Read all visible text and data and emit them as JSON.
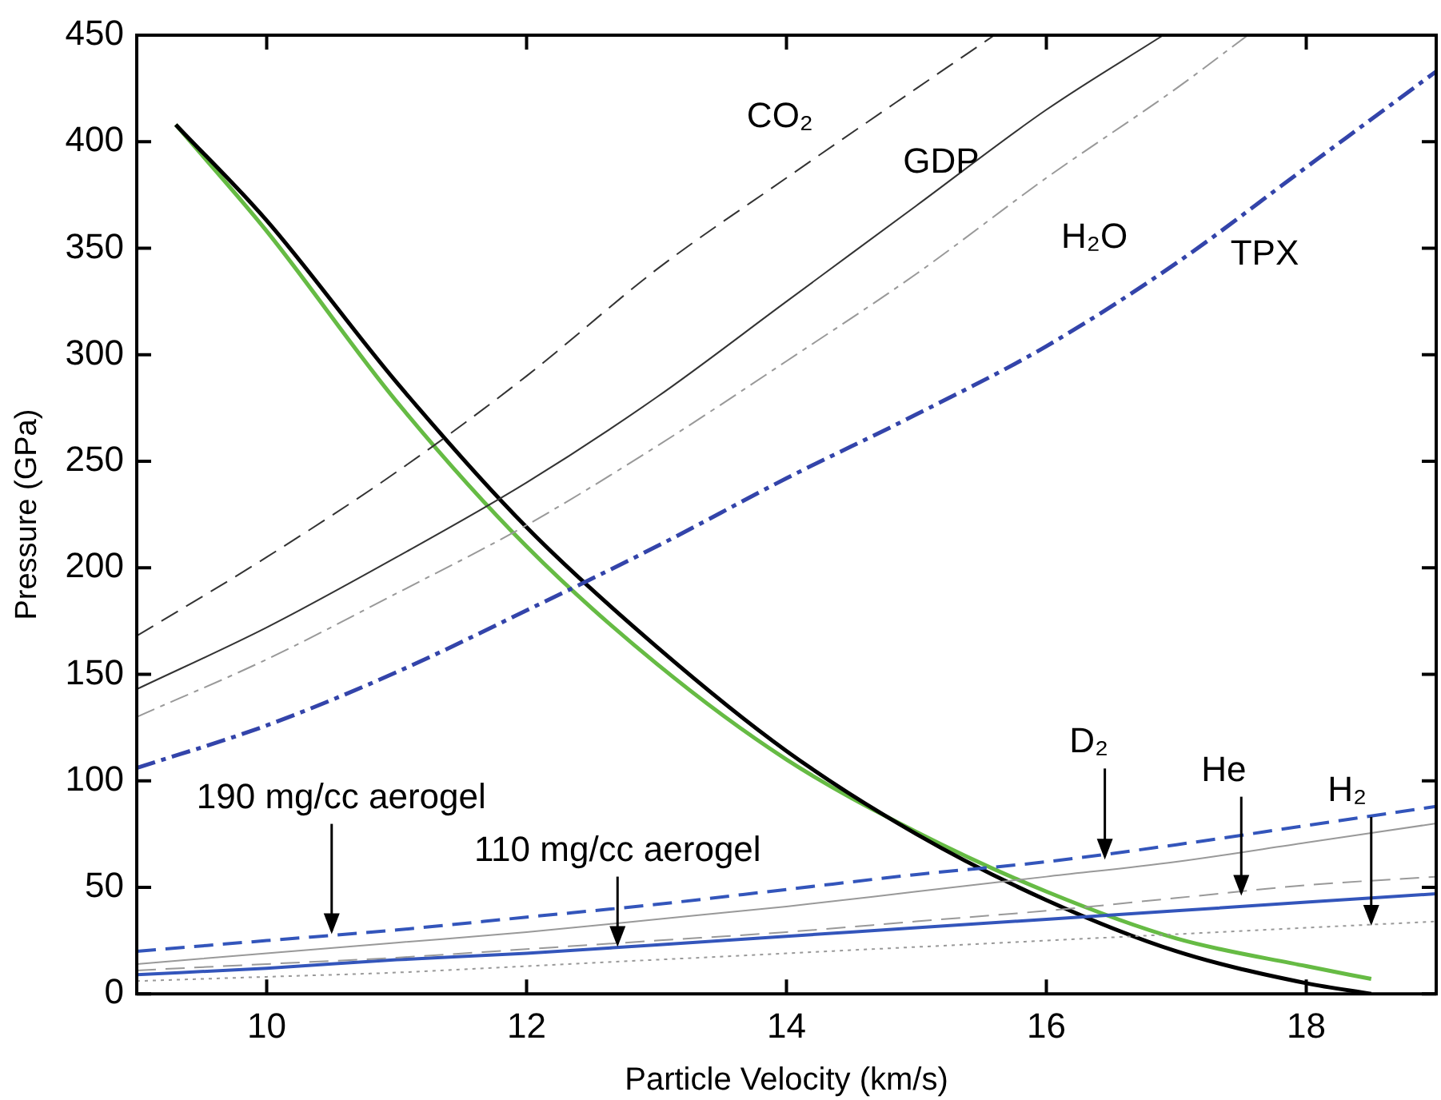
{
  "chart_data": {
    "type": "line",
    "xlabel": "Particle Velocity (km/s)",
    "ylabel": "Pressure (GPa)",
    "xlim": [
      9,
      19
    ],
    "ylim": [
      0,
      450
    ],
    "xticks": [
      10,
      12,
      14,
      16,
      18
    ],
    "yticks": [
      0,
      50,
      100,
      150,
      200,
      250,
      300,
      350,
      400,
      450
    ],
    "grid": false,
    "legend": false,
    "marker": "none",
    "series": [
      {
        "color": "#333333",
        "line_style": "dashed",
        "x": [
          9,
          10,
          11,
          12,
          13,
          14,
          15,
          15.6
        ],
        "values": [
          168,
          205,
          245,
          290,
          340,
          383,
          425,
          450
        ]
      },
      {
        "color": "#333333",
        "line_style": "solid",
        "x": [
          9,
          10,
          11,
          12,
          13,
          14,
          15,
          16,
          16.9
        ],
        "values": [
          143,
          172,
          205,
          240,
          280,
          325,
          370,
          415,
          450
        ]
      },
      {
        "color": "#999999",
        "line_style": "dashdot",
        "x": [
          9,
          10,
          11,
          12,
          13,
          14,
          15,
          16,
          17,
          17.55
        ],
        "values": [
          130,
          157,
          188,
          220,
          257,
          297,
          338,
          383,
          425,
          450
        ]
      },
      {
        "color": "#3344aa",
        "line_style": "dashdot",
        "x": [
          9,
          10,
          11,
          12,
          13,
          14,
          15,
          16,
          17,
          18,
          19
        ],
        "values": [
          106,
          126,
          151,
          180,
          210,
          242,
          272,
          304,
          343,
          388,
          433
        ]
      },
      {
        "color": "#3355bb",
        "line_style": "dashed",
        "x": [
          9,
          10,
          11,
          12,
          13,
          14,
          15,
          16,
          17,
          18,
          19
        ],
        "values": [
          20,
          25,
          30,
          36,
          42,
          49,
          56,
          62,
          70,
          79,
          88
        ]
      },
      {
        "color": "#999999",
        "line_style": "solid",
        "x": [
          9,
          10,
          11,
          12,
          13,
          14,
          15,
          16,
          17,
          18,
          19
        ],
        "values": [
          14,
          19,
          24,
          29,
          35,
          41,
          48,
          55,
          62,
          71,
          80
        ]
      },
      {
        "color": "#999999",
        "line_style": "dashed",
        "x": [
          9,
          10,
          11,
          12,
          13,
          14,
          15,
          16,
          17,
          18,
          19
        ],
        "values": [
          11,
          14,
          17,
          21,
          25,
          29,
          34,
          39,
          45,
          51,
          55
        ]
      },
      {
        "color": "#3355bb",
        "line_style": "solid",
        "x": [
          9,
          10,
          11,
          12,
          13,
          14,
          15,
          16,
          17,
          18,
          19
        ],
        "values": [
          9,
          12,
          16,
          19,
          23,
          27,
          31,
          35,
          39,
          43,
          47
        ]
      },
      {
        "color": "#999999",
        "line_style": "dotted",
        "x": [
          9,
          10,
          11,
          12,
          13,
          14,
          15,
          16,
          17,
          18,
          19
        ],
        "values": [
          6,
          8,
          10,
          13,
          16,
          19,
          22,
          25,
          28,
          31,
          34
        ]
      },
      {
        "color": "#000000",
        "line_style": "solid",
        "x": [
          9.3,
          10,
          11,
          12,
          13,
          14,
          15,
          16,
          17,
          18,
          18.5
        ],
        "values": [
          408,
          363,
          287,
          219,
          163,
          114,
          75,
          44,
          20,
          5,
          0
        ]
      },
      {
        "color": "#66bb44",
        "line_style": "solid",
        "x": [
          9.3,
          10,
          11,
          12,
          13,
          14,
          15,
          16,
          17,
          18,
          18.5
        ],
        "values": [
          408,
          358,
          278,
          210,
          155,
          110,
          76,
          48,
          26,
          13,
          7
        ]
      }
    ],
    "annotations": [
      "CO₂",
      "GDP",
      "H₂O",
      "TPX",
      {
        "text": "D₂",
        "x": 16.45,
        "y": 63
      },
      {
        "text": "He",
        "x": 17.5,
        "y": 46
      },
      {
        "text": "H₂",
        "x": 18.5,
        "y": 32
      },
      {
        "text": "190 mg/cc aerogel",
        "x": 10.5,
        "y": 28
      },
      {
        "text": "110 mg/cc aerogel",
        "x": 12.7,
        "y": 22
      }
    ]
  }
}
